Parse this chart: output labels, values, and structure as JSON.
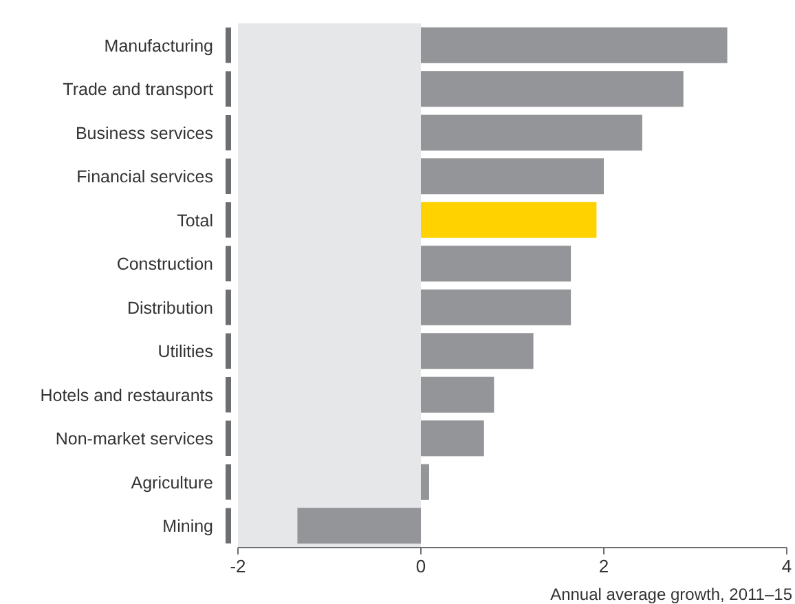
{
  "chart_data": {
    "type": "bar",
    "orientation": "horizontal",
    "xlabel": "Annual average growth, 2011–15",
    "categories": [
      "Manufacturing",
      "Trade and transport",
      "Business services",
      "Financial services",
      "Total",
      "Construction",
      "Distribution",
      "Utilities",
      "Hotels and restaurants",
      "Non-market services",
      "Agriculture",
      "Mining"
    ],
    "values": [
      3.35,
      2.87,
      2.42,
      2.0,
      1.92,
      1.64,
      1.64,
      1.23,
      0.8,
      0.69,
      0.09,
      -1.35
    ],
    "colors": [
      "#939598",
      "#939598",
      "#939598",
      "#939598",
      "#ffd200",
      "#939598",
      "#939598",
      "#939598",
      "#939598",
      "#939598",
      "#939598",
      "#939598"
    ],
    "xlim": [
      -2,
      4
    ],
    "xticks": [
      -2,
      0,
      2,
      4
    ],
    "grid": false,
    "bands": [
      {
        "axis": "x",
        "from": -2,
        "to": 0,
        "color": "#e6e7e8"
      }
    ]
  }
}
